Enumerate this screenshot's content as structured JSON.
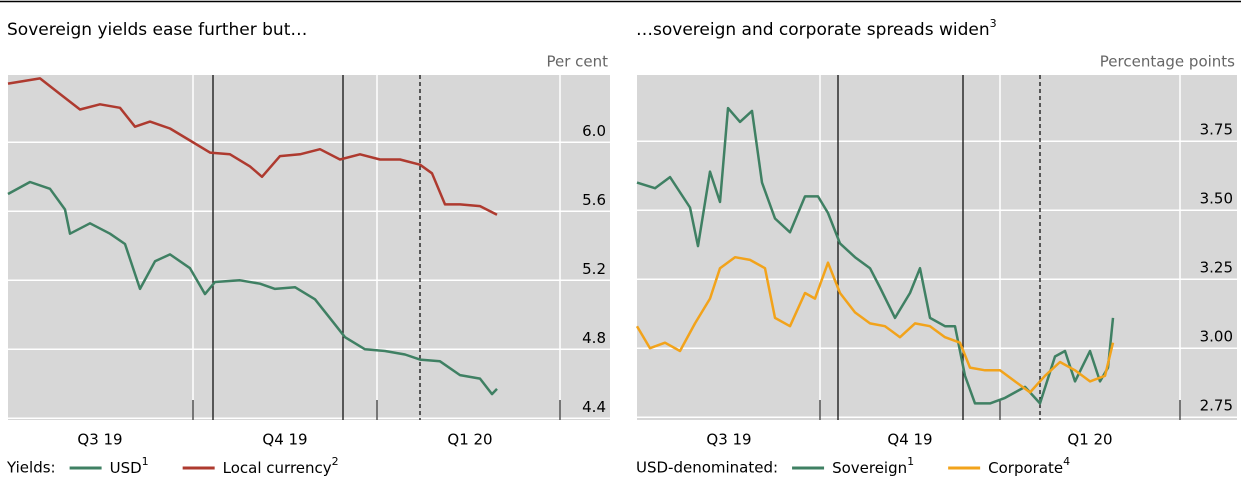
{
  "chart_data": [
    {
      "type": "line",
      "title": "Sovereign yields ease further but…",
      "unit": "Per cent",
      "legend_label": "Yields:",
      "xlim": [
        0,
        301
      ],
      "ylim": [
        4.39,
        6.39
      ],
      "yticks": [
        4.4,
        4.8,
        5.2,
        5.6,
        {
          "value": 6,
          "label": "6.0"
        }
      ],
      "xticks": [
        {
          "value": 46,
          "label": "Q3 19"
        },
        {
          "value": 138.5,
          "label": "Q4 19"
        },
        {
          "value": 231,
          "label": "Q1 20"
        }
      ],
      "xgrid": [
        92.5,
        184.5,
        276
      ],
      "events": [
        {
          "x": 102.5,
          "style": "solid"
        },
        {
          "x": 167.5,
          "style": "solid"
        },
        {
          "x": 206,
          "style": "dashed"
        }
      ],
      "grid": true,
      "background": "#d7d7d7",
      "series": [
        {
          "name": "USD",
          "footnote": "1",
          "color": "#3f8063",
          "x": [
            0,
            11,
            21,
            28.5,
            31,
            41,
            51,
            58.5,
            66,
            73.5,
            81,
            91,
            98.5,
            103.5,
            116,
            126,
            133.5,
            143.5,
            153.5,
            161,
            168.5,
            178.5,
            188.5,
            198.5,
            206,
            216,
            226,
            236,
            242,
            244.5
          ],
          "values": [
            5.7,
            5.77,
            5.73,
            5.61,
            5.47,
            5.53,
            5.47,
            5.41,
            5.15,
            5.31,
            5.35,
            5.27,
            5.12,
            5.19,
            5.2,
            5.18,
            5.15,
            5.16,
            5.09,
            4.98,
            4.87,
            4.8,
            4.79,
            4.77,
            4.74,
            4.73,
            4.65,
            4.63,
            4.54,
            4.57
          ]
        },
        {
          "name": "Local currency",
          "footnote": "2",
          "color": "#ae3a2f",
          "x": [
            0,
            16,
            26,
            36,
            46,
            56,
            63.5,
            71,
            81,
            91,
            101,
            111,
            121,
            127,
            136,
            146,
            156,
            166,
            176,
            186,
            196,
            206,
            212,
            218.5,
            226,
            236,
            244.5
          ],
          "values": [
            6.34,
            6.37,
            6.28,
            6.19,
            6.22,
            6.2,
            6.09,
            6.12,
            6.08,
            6.01,
            5.94,
            5.93,
            5.86,
            5.8,
            5.92,
            5.93,
            5.96,
            5.9,
            5.93,
            5.9,
            5.9,
            5.87,
            5.82,
            5.64,
            5.64,
            5.63,
            5.58
          ]
        }
      ]
    },
    {
      "type": "line",
      "title": "…sovereign and corporate spreads widen",
      "title_note": "3",
      "unit": "Percentage points",
      "legend_label": "USD-denominated:",
      "xlim": [
        0,
        300
      ],
      "ylim": [
        2.74,
        3.99
      ],
      "yticks": [
        2.75,
        {
          "value": 3,
          "label": "3.00"
        },
        3.25,
        {
          "value": 3.5,
          "label": "3.50"
        },
        3.75
      ],
      "xticks": [
        {
          "value": 46,
          "label": "Q3 19"
        },
        {
          "value": 136.5,
          "label": "Q4 19"
        },
        {
          "value": 226.5,
          "label": "Q1 20"
        }
      ],
      "xgrid": [
        91.5,
        181.5,
        271.5
      ],
      "events": [
        {
          "x": 100.5,
          "style": "solid"
        },
        {
          "x": 163,
          "style": "solid"
        },
        {
          "x": 201.5,
          "style": "dashed"
        }
      ],
      "grid": true,
      "background": "#d7d7d7",
      "series": [
        {
          "name": "Sovereign",
          "footnote": "1",
          "color": "#3f8063",
          "x": [
            0,
            9,
            16.5,
            26.5,
            30.5,
            36.5,
            41.5,
            45.5,
            51.5,
            57.5,
            62.5,
            69,
            76.5,
            84,
            90.5,
            95.5,
            101.5,
            109,
            116.5,
            121.5,
            129,
            136.5,
            141.5,
            146.5,
            154,
            159,
            164,
            169,
            176.5,
            184,
            189,
            194,
            201.5,
            209,
            214,
            219,
            226.5,
            231.5,
            235.5,
            238
          ],
          "values": [
            3.6,
            3.58,
            3.62,
            3.51,
            3.37,
            3.64,
            3.53,
            3.87,
            3.82,
            3.86,
            3.6,
            3.47,
            3.42,
            3.55,
            3.55,
            3.49,
            3.38,
            3.33,
            3.29,
            3.22,
            3.11,
            3.2,
            3.29,
            3.11,
            3.08,
            3.08,
            2.9,
            2.8,
            2.8,
            2.82,
            2.84,
            2.86,
            2.8,
            2.97,
            2.99,
            2.88,
            2.99,
            2.88,
            2.93,
            3.11
          ]
        },
        {
          "name": "Corporate",
          "footnote": "4",
          "color": "#f2a31b",
          "x": [
            0,
            6.5,
            14,
            21.5,
            29,
            36.5,
            41.5,
            49,
            56.5,
            64,
            69,
            76.5,
            84,
            89,
            95.5,
            101.5,
            109,
            116.5,
            124,
            131.5,
            139,
            146.5,
            154,
            161.5,
            166.5,
            174,
            181.5,
            189,
            196.5,
            204,
            211.5,
            219,
            226.5,
            234,
            238
          ],
          "values": [
            3.08,
            3.0,
            3.02,
            2.99,
            3.09,
            3.18,
            3.29,
            3.33,
            3.32,
            3.29,
            3.11,
            3.08,
            3.2,
            3.18,
            3.31,
            3.2,
            3.13,
            3.09,
            3.08,
            3.04,
            3.09,
            3.08,
            3.04,
            3.02,
            2.93,
            2.92,
            2.92,
            2.88,
            2.84,
            2.9,
            2.95,
            2.92,
            2.88,
            2.9,
            3.02
          ]
        }
      ]
    }
  ]
}
